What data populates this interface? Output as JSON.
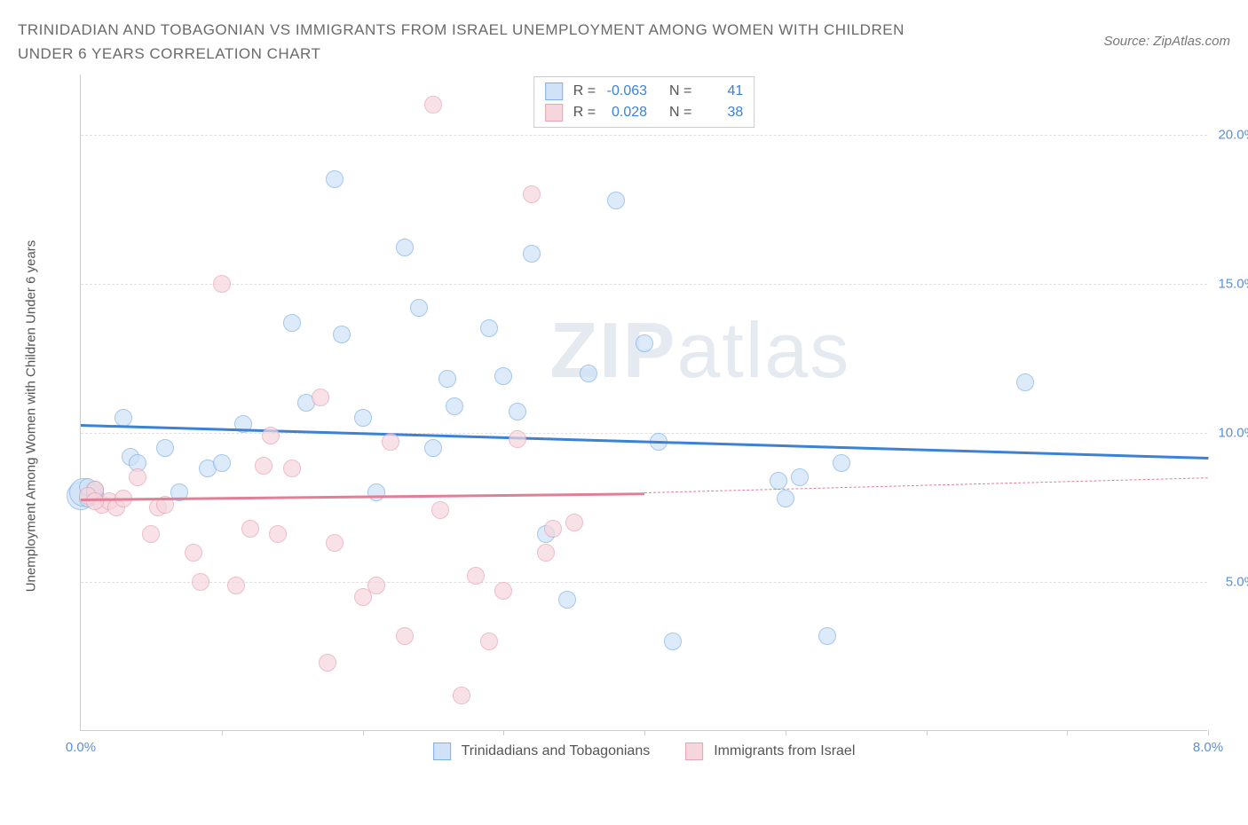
{
  "title": "TRINIDADIAN AND TOBAGONIAN VS IMMIGRANTS FROM ISRAEL UNEMPLOYMENT AMONG WOMEN WITH CHILDREN UNDER 6 YEARS CORRELATION CHART",
  "source": "Source: ZipAtlas.com",
  "y_axis_label": "Unemployment Among Women with Children Under 6 years",
  "watermark_bold": "ZIP",
  "watermark_thin": "atlas",
  "chart": {
    "type": "scatter",
    "xlim": [
      0,
      8
    ],
    "ylim": [
      0,
      22
    ],
    "x_ticks": [
      1,
      2,
      3,
      4,
      5,
      6,
      7,
      8
    ],
    "x_tick_labels": {
      "0": "0.0%",
      "8": "8.0%"
    },
    "y_gridlines": [
      5,
      10,
      15,
      20
    ],
    "y_tick_labels": {
      "5": "5.0%",
      "10": "10.0%",
      "15": "15.0%",
      "20": "20.0%"
    },
    "background_color": "#ffffff",
    "grid_color": "#e0e0e0",
    "axis_color": "#cccccc",
    "tick_label_color": "#5b8fd6"
  },
  "series": [
    {
      "name": "Trinidadians and Tobagonians",
      "fill": "#cfe2f7",
      "stroke": "#7fb0e3",
      "line_color": "#3b82d6",
      "R": "-0.063",
      "N": "41",
      "trend": {
        "x0": 0,
        "y0": 10.3,
        "x1": 8,
        "y1": 9.2,
        "dash_from": 8
      },
      "points": [
        [
          0.05,
          7.8
        ],
        [
          0.05,
          8.2
        ],
        [
          0.1,
          8.0
        ],
        [
          0.1,
          7.9
        ],
        [
          0.3,
          10.5
        ],
        [
          0.35,
          9.2
        ],
        [
          0.4,
          9.0
        ],
        [
          0.6,
          9.5
        ],
        [
          0.7,
          8.0
        ],
        [
          0.9,
          8.8
        ],
        [
          1.0,
          9.0
        ],
        [
          1.15,
          10.3
        ],
        [
          1.5,
          13.7
        ],
        [
          1.6,
          11.0
        ],
        [
          1.8,
          18.5
        ],
        [
          1.85,
          13.3
        ],
        [
          2.0,
          10.5
        ],
        [
          2.1,
          8.0
        ],
        [
          2.3,
          16.2
        ],
        [
          2.4,
          14.2
        ],
        [
          2.5,
          9.5
        ],
        [
          2.6,
          11.8
        ],
        [
          2.65,
          10.9
        ],
        [
          2.9,
          13.5
        ],
        [
          3.0,
          11.9
        ],
        [
          3.1,
          10.7
        ],
        [
          3.2,
          16.0
        ],
        [
          3.3,
          6.6
        ],
        [
          3.45,
          4.4
        ],
        [
          3.6,
          12.0
        ],
        [
          3.8,
          17.8
        ],
        [
          4.0,
          13.0
        ],
        [
          4.1,
          9.7
        ],
        [
          4.2,
          3.0
        ],
        [
          4.95,
          8.4
        ],
        [
          5.0,
          7.8
        ],
        [
          5.1,
          8.5
        ],
        [
          5.3,
          3.2
        ],
        [
          5.4,
          9.0
        ],
        [
          6.7,
          11.7
        ],
        [
          0.1,
          8.1
        ]
      ],
      "big_points": [
        [
          0.0,
          7.9
        ],
        [
          0.02,
          8.0
        ]
      ]
    },
    {
      "name": "Immigrants from Israel",
      "fill": "#f6d6dd",
      "stroke": "#e6a3b3",
      "line_color": "#e07f95",
      "R": "0.028",
      "N": "38",
      "trend": {
        "x0": 0,
        "y0": 7.8,
        "x1": 4.0,
        "y1": 8.0,
        "dash_from": 4.0,
        "dash_to": 8,
        "dash_y": 8.5
      },
      "points": [
        [
          0.1,
          8.1
        ],
        [
          0.15,
          7.6
        ],
        [
          0.2,
          7.7
        ],
        [
          0.25,
          7.5
        ],
        [
          0.3,
          7.8
        ],
        [
          0.4,
          8.5
        ],
        [
          0.5,
          6.6
        ],
        [
          0.55,
          7.5
        ],
        [
          0.6,
          7.6
        ],
        [
          0.8,
          6.0
        ],
        [
          0.85,
          5.0
        ],
        [
          1.0,
          15.0
        ],
        [
          1.1,
          4.9
        ],
        [
          1.2,
          6.8
        ],
        [
          1.3,
          8.9
        ],
        [
          1.35,
          9.9
        ],
        [
          1.4,
          6.6
        ],
        [
          1.5,
          8.8
        ],
        [
          1.7,
          11.2
        ],
        [
          1.75,
          2.3
        ],
        [
          1.8,
          6.3
        ],
        [
          2.0,
          4.5
        ],
        [
          2.1,
          4.9
        ],
        [
          2.2,
          9.7
        ],
        [
          2.3,
          3.2
        ],
        [
          2.5,
          21.0
        ],
        [
          2.55,
          7.4
        ],
        [
          2.7,
          1.2
        ],
        [
          2.8,
          5.2
        ],
        [
          2.9,
          3.0
        ],
        [
          3.0,
          4.7
        ],
        [
          3.1,
          9.8
        ],
        [
          3.2,
          18.0
        ],
        [
          3.3,
          6.0
        ],
        [
          3.35,
          6.8
        ],
        [
          3.5,
          7.0
        ],
        [
          0.05,
          7.9
        ],
        [
          0.1,
          7.7
        ]
      ],
      "big_points": []
    }
  ],
  "stats_legend": {
    "R_label": "R =",
    "N_label": "N ="
  }
}
